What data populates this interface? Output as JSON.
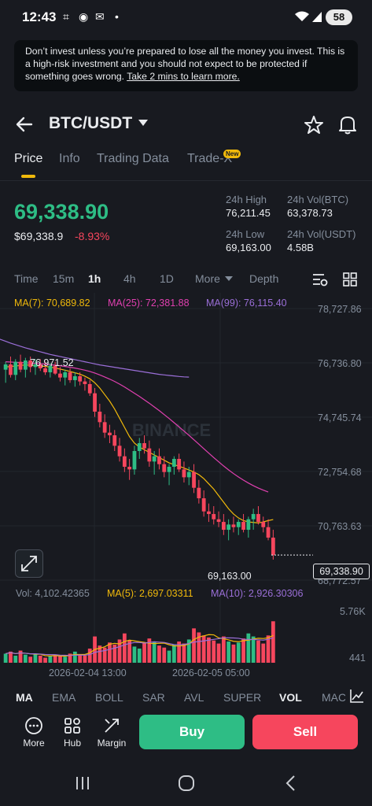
{
  "status_bar": {
    "time": "12:43",
    "battery": "58"
  },
  "warning": {
    "text": "Don’t invest unless you’re prepared to lose all the money you invest. This is a high-risk investment and you should not expect to be protected if something goes wrong. ",
    "link": "Take 2 mins to learn more."
  },
  "header": {
    "pair": "BTC/USDT"
  },
  "tabs": [
    "Price",
    "Info",
    "Trading Data",
    "Trade-X"
  ],
  "new_badge": "New",
  "price": {
    "last": "69,338.90",
    "usd": "$69,338.9",
    "change": "-8.93%",
    "high_label": "24h High",
    "high": "76,211.45",
    "vol_btc_label": "24h Vol(BTC)",
    "vol_btc": "63,378.73",
    "low_label": "24h Low",
    "low": "69,163.00",
    "vol_usdt_label": "24h Vol(USDT)",
    "vol_usdt": "4.58B"
  },
  "intervals": [
    "Time",
    "15m",
    "1h",
    "4h",
    "1D",
    "More",
    "Depth"
  ],
  "chart": {
    "ma7_label": "MA(7): 70,689.82",
    "ma25_label": "MA(25): 72,381.88",
    "ma99_label": "MA(99): 76,115.40",
    "price_ticks": [
      "78,727.86",
      "76,736.80",
      "74,745.74",
      "72,754.68",
      "70,763.63",
      "68,772.57"
    ],
    "high_marker": "76,971.52",
    "low_marker": "69,163.00",
    "current_price": "69,338.90",
    "watermark": "BINANCE",
    "vol_label": "Vol: 4,102.42365",
    "vma5_label": "MA(5): 2,697.03311",
    "vma10_label": "MA(10): 2,926.30306",
    "vol_ticks": [
      "5.76K",
      "441"
    ],
    "time_ticks": [
      "2026-02-04 13:00",
      "2026-02-05 05:00"
    ],
    "colors": {
      "up": "#2ebd85",
      "down": "#f6465d",
      "ma7": "#f0b90b",
      "ma25": "#e040b0",
      "ma99": "#9b6fd8"
    }
  },
  "chart_data": {
    "type": "candlestick",
    "ylim": [
      68772.57,
      78727.86
    ],
    "candles": [
      [
        76400,
        76700,
        75900,
        76600
      ],
      [
        76600,
        76900,
        76100,
        76200
      ],
      [
        76200,
        76800,
        76000,
        76700
      ],
      [
        76700,
        76971.52,
        76300,
        76400
      ],
      [
        76400,
        76850,
        76100,
        76750
      ],
      [
        76750,
        76900,
        76300,
        76500
      ],
      [
        76500,
        76800,
        76200,
        76600
      ],
      [
        76600,
        76800,
        76350,
        76450
      ],
      [
        76450,
        76700,
        76200,
        76300
      ],
      [
        76300,
        76650,
        76100,
        76550
      ],
      [
        76550,
        76700,
        76200,
        76250
      ],
      [
        76250,
        76500,
        75950,
        76100
      ],
      [
        76100,
        76400,
        75800,
        76300
      ],
      [
        76300,
        76450,
        75900,
        76000
      ],
      [
        76000,
        76300,
        75750,
        76150
      ],
      [
        76150,
        76300,
        75800,
        75950
      ],
      [
        75950,
        76100,
        75600,
        75850
      ],
      [
        75850,
        76000,
        75400,
        75500
      ],
      [
        75500,
        75700,
        74600,
        74800
      ],
      [
        74800,
        75100,
        74200,
        74400
      ],
      [
        74400,
        74700,
        73800,
        74000
      ],
      [
        74000,
        74300,
        73600,
        73900
      ],
      [
        73900,
        74100,
        73300,
        73500
      ],
      [
        73500,
        73800,
        72900,
        73100
      ],
      [
        73100,
        73400,
        72500,
        72700
      ],
      [
        72700,
        73000,
        72200,
        72600
      ],
      [
        72600,
        73500,
        72400,
        73300
      ],
      [
        73300,
        73800,
        73000,
        73600
      ],
      [
        73600,
        73900,
        73200,
        73400
      ],
      [
        73400,
        73700,
        72700,
        72900
      ],
      [
        72900,
        73300,
        72400,
        73100
      ],
      [
        73100,
        73400,
        72600,
        72800
      ],
      [
        72800,
        73100,
        72300,
        72500
      ],
      [
        72500,
        72800,
        72000,
        72700
      ],
      [
        72700,
        73100,
        72400,
        73000
      ],
      [
        73000,
        73200,
        72500,
        72600
      ],
      [
        72600,
        72900,
        72100,
        72300
      ],
      [
        72300,
        72700,
        72000,
        72500
      ],
      [
        72500,
        72800,
        71700,
        71900
      ],
      [
        71900,
        72200,
        71300,
        71500
      ],
      [
        71500,
        71800,
        70800,
        71000
      ],
      [
        71000,
        71300,
        70600,
        70900
      ],
      [
        70900,
        71200,
        70500,
        70700
      ],
      [
        70700,
        71000,
        70400,
        70600
      ],
      [
        70600,
        70900,
        70100,
        70300
      ],
      [
        70300,
        70700,
        69900,
        70500
      ],
      [
        70500,
        70800,
        70200,
        70400
      ],
      [
        70400,
        70700,
        70100,
        70600
      ],
      [
        70600,
        70900,
        70200,
        70300
      ],
      [
        70300,
        70800,
        70000,
        70700
      ],
      [
        70700,
        71100,
        70300,
        70900
      ],
      [
        70900,
        71200,
        70500,
        70600
      ],
      [
        70600,
        70800,
        70200,
        70400
      ],
      [
        70400,
        70700,
        69900,
        70000
      ],
      [
        70000,
        70300,
        69163,
        69338.9
      ]
    ],
    "ma7": [
      76500,
      76520,
      76540,
      76560,
      76580,
      76570,
      76560,
      76540,
      76520,
      76500,
      76460,
      76420,
      76380,
      76330,
      76280,
      76230,
      76150,
      76050,
      75900,
      75700,
      75450,
      75200,
      74900,
      74550,
      74200,
      73850,
      73600,
      73450,
      73350,
      73250,
      73150,
      73050,
      72950,
      72850,
      72780,
      72720,
      72650,
      72580,
      72500,
      72400,
      72250,
      72050,
      71850,
      71600,
      71350,
      71100,
      70900,
      70750,
      70650,
      70600,
      70580,
      70560,
      70600,
      70650,
      70689.82
    ],
    "ma25": [
      76700,
      76690,
      76680,
      76670,
      76660,
      76650,
      76640,
      76630,
      76610,
      76590,
      76570,
      76550,
      76520,
      76490,
      76460,
      76420,
      76380,
      76330,
      76270,
      76200,
      76120,
      76040,
      75950,
      75850,
      75740,
      75620,
      75500,
      75380,
      75250,
      75120,
      74980,
      74840,
      74690,
      74540,
      74380,
      74220,
      74060,
      73900,
      73730,
      73560,
      73390,
      73220,
      73050,
      72890,
      72730,
      72580,
      72440,
      72310,
      72190,
      72080,
      71980,
      71890,
      71810,
      71740,
      72381.88
    ],
    "ma99": [
      78100,
      78020,
      77940,
      77860,
      77780,
      77700,
      77620,
      77550,
      77480,
      77410,
      77350,
      77290,
      77230,
      77180,
      77130,
      77080,
      77030,
      76980,
      76940,
      76900,
      76860,
      76820,
      76780,
      76740,
      76700,
      76660,
      76620,
      76580,
      76550,
      76520,
      76490,
      76460,
      76430,
      76400,
      76370,
      76340,
      76310,
      76280,
      76250,
      76220,
      76200,
      76180,
      76160,
      76140,
      76125,
      76115.4
    ],
    "volume": [
      900,
      1100,
      700,
      1200,
      800,
      600,
      900,
      700,
      500,
      650,
      800,
      700,
      600,
      900,
      1100,
      800,
      700,
      1400,
      2600,
      1700,
      1500,
      2000,
      1800,
      2300,
      2900,
      2200,
      1600,
      1400,
      2000,
      2400,
      2100,
      1700,
      1500,
      1200,
      1800,
      2100,
      1900,
      2300,
      3400,
      3000,
      2700,
      2500,
      2200,
      1900,
      2600,
      2100,
      1800,
      2000,
      2400,
      2900,
      2600,
      2200,
      1900,
      2700,
      4102.42
    ],
    "vol_ylim": [
      0,
      5760
    ]
  },
  "indicators": [
    "MA",
    "EMA",
    "BOLL",
    "SAR",
    "AVL",
    "SUPER",
    "VOL",
    "MAC"
  ],
  "actions": {
    "more": "More",
    "hub": "Hub",
    "margin": "Margin",
    "buy": "Buy",
    "sell": "Sell"
  }
}
